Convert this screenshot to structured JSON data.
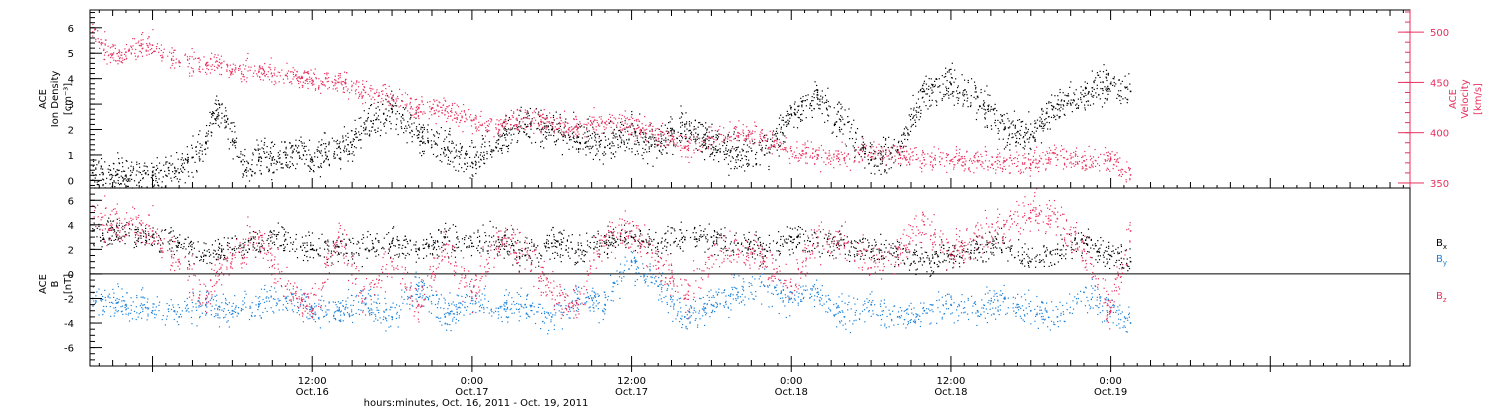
{
  "xlabel": "hours:minutes, Oct. 16, 2011 - Oct. 19, 2011",
  "x_ticks": [
    {
      "time": "12:00",
      "date": "Oct.16"
    },
    {
      "time": "0:00",
      "date": "Oct.17"
    },
    {
      "time": "12:00",
      "date": "Oct.17"
    },
    {
      "time": "0:00",
      "date": "Oct.18"
    },
    {
      "time": "12:00",
      "date": "Oct.18"
    },
    {
      "time": "0:00",
      "date": "Oct.19"
    }
  ],
  "colors": {
    "black": "#000000",
    "pink": "#e8305f",
    "blue": "#1a80d8"
  },
  "chart_data": [
    {
      "type": "scatter",
      "panel": "top",
      "x_range_hours": [
        -4.7,
        94.5
      ],
      "data_end_hour": 73.5,
      "left_axis": {
        "label_lines": [
          "ACE",
          "Ion Density",
          "[cm⁻³]"
        ],
        "ylim": [
          -0.3,
          6.7
        ],
        "ticks": [
          0,
          1,
          2,
          3,
          4,
          5,
          6
        ],
        "tick_labels": [
          "0",
          "1",
          "2",
          "3",
          "4",
          "5",
          "6"
        ]
      },
      "right_axis": {
        "label_lines": [
          "ACE",
          "Velocity",
          "[km/s]"
        ],
        "ylim": [
          345,
          522
        ],
        "ticks": [
          350,
          400,
          450,
          500
        ],
        "tick_labels": [
          "350",
          "400",
          "450",
          "500"
        ]
      },
      "series": [
        {
          "name": "",
          "axis": "left",
          "color": "#000000",
          "x_hours": [
            -4.5,
            -2,
            0,
            2,
            3,
            4,
            5,
            7,
            8,
            9,
            10,
            11,
            12,
            13,
            14,
            15,
            16,
            18,
            20,
            22,
            24,
            26,
            28,
            30,
            32,
            34,
            36,
            38,
            40,
            41,
            42,
            44,
            46,
            48,
            50,
            52,
            54,
            56,
            58,
            60,
            62,
            64,
            66,
            68,
            70,
            72,
            73.5
          ],
          "values": [
            0.3,
            0.2,
            0.2,
            0.3,
            0.9,
            1.5,
            3.0,
            0.4,
            0.9,
            0.8,
            1.0,
            1.1,
            0.8,
            1.1,
            1.3,
            1.4,
            2.0,
            2.8,
            1.8,
            1.2,
            0.7,
            1.6,
            2.2,
            2.0,
            1.7,
            1.3,
            1.8,
            1.4,
            2.2,
            1.8,
            1.4,
            1.0,
            1.0,
            2.6,
            3.2,
            2.2,
            0.8,
            1.2,
            3.5,
            3.8,
            3.3,
            2.0,
            1.8,
            3.0,
            3.3,
            3.8,
            3.5
          ]
        },
        {
          "name": "",
          "axis": "right",
          "color": "#e8305f",
          "x_hours": [
            -4.5,
            -4,
            -3,
            -2,
            0,
            2,
            4,
            6,
            8,
            10,
            12,
            14,
            16,
            18,
            20,
            22,
            24,
            26,
            28,
            30,
            32,
            34,
            36,
            38,
            40,
            42,
            44,
            46,
            48,
            50,
            52,
            54,
            56,
            58,
            60,
            62,
            64,
            66,
            68,
            70,
            72,
            73.5
          ],
          "values": [
            500,
            490,
            478,
            480,
            487,
            470,
            468,
            463,
            461,
            457,
            452,
            450,
            440,
            435,
            425,
            422,
            412,
            408,
            415,
            410,
            405,
            410,
            408,
            398,
            385,
            395,
            400,
            395,
            382,
            378,
            375,
            380,
            380,
            373,
            372,
            372,
            372,
            368,
            378,
            372,
            374,
            358
          ]
        }
      ]
    },
    {
      "type": "scatter",
      "panel": "bottom",
      "x_range_hours": [
        -4.7,
        94.5
      ],
      "data_end_hour": 73.5,
      "left_axis": {
        "label_lines": [
          "ACE",
          "B",
          "[nT]"
        ],
        "ylim": [
          -7.5,
          7
        ],
        "ticks": [
          -6,
          -4,
          -2,
          0,
          2,
          4,
          6
        ],
        "tick_labels": [
          "-6",
          "-4",
          "-2",
          "0",
          "2",
          "4",
          "6"
        ]
      },
      "zero_line": true,
      "series": [
        {
          "name": "B",
          "subscript": "x",
          "color": "#000000",
          "x_hours": [
            -4.5,
            -2,
            0,
            2,
            4,
            6,
            8,
            10,
            12,
            14,
            16,
            18,
            20,
            22,
            24,
            26,
            28,
            30,
            32,
            34,
            36,
            38,
            40,
            42,
            44,
            46,
            48,
            50,
            52,
            54,
            56,
            58,
            60,
            62,
            64,
            66,
            68,
            70,
            72,
            73.5
          ],
          "values": [
            3.5,
            3.2,
            3.0,
            2.5,
            1.5,
            2.0,
            2.5,
            2.8,
            2.0,
            2.2,
            2.0,
            2.5,
            2.0,
            3.0,
            2.5,
            2.8,
            1.5,
            2.5,
            2.0,
            2.5,
            3.0,
            2.5,
            2.8,
            3.0,
            2.5,
            2.0,
            3.0,
            2.5,
            2.5,
            1.8,
            2.0,
            1.0,
            1.5,
            2.0,
            2.5,
            1.0,
            2.0,
            2.5,
            1.5,
            1.0
          ]
        },
        {
          "name": "B",
          "subscript": "y",
          "color": "#1a80d8",
          "x_hours": [
            -4.5,
            -2,
            0,
            2,
            4,
            6,
            8,
            10,
            12,
            14,
            16,
            18,
            20,
            22,
            24,
            26,
            28,
            30,
            32,
            34,
            36,
            38,
            40,
            42,
            44,
            46,
            48,
            50,
            52,
            54,
            56,
            58,
            60,
            62,
            64,
            66,
            68,
            70,
            72,
            73.5
          ],
          "values": [
            -2.0,
            -2.5,
            -3.0,
            -3.5,
            -2.5,
            -3.0,
            -2.5,
            -2.0,
            -2.8,
            -3.0,
            -2.5,
            -3.5,
            -1.0,
            -3.5,
            -2.0,
            -2.8,
            -2.5,
            -3.5,
            -2.0,
            -2.5,
            1.0,
            -1.0,
            -3.5,
            -2.5,
            -1.5,
            -1.0,
            -2.0,
            -1.5,
            -3.5,
            -2.5,
            -3.5,
            -3.0,
            -2.5,
            -3.0,
            -2.0,
            -3.0,
            -3.5,
            -1.5,
            -3.0,
            -4.0
          ]
        },
        {
          "name": "B",
          "subscript": "z",
          "color": "#e8305f",
          "x_hours": [
            -4.5,
            -2,
            0,
            2,
            4,
            6,
            8,
            10,
            12,
            14,
            16,
            18,
            20,
            22,
            24,
            26,
            28,
            30,
            32,
            34,
            36,
            38,
            40,
            42,
            44,
            46,
            48,
            50,
            52,
            54,
            56,
            58,
            60,
            62,
            64,
            66,
            68,
            70,
            72,
            73.5
          ],
          "values": [
            4.5,
            4.0,
            3.5,
            1.0,
            -2.0,
            1.5,
            3.0,
            -1.0,
            -3.0,
            3.0,
            -2.0,
            1.0,
            -2.5,
            2.0,
            -1.5,
            3.0,
            2.0,
            -1.5,
            -2.5,
            3.0,
            3.5,
            1.0,
            -2.0,
            1.5,
            2.0,
            1.0,
            -1.0,
            3.0,
            2.5,
            0.5,
            2.0,
            4.0,
            1.5,
            3.0,
            4.0,
            5.0,
            4.5,
            2.0,
            -3.0,
            3.5
          ]
        }
      ]
    }
  ]
}
